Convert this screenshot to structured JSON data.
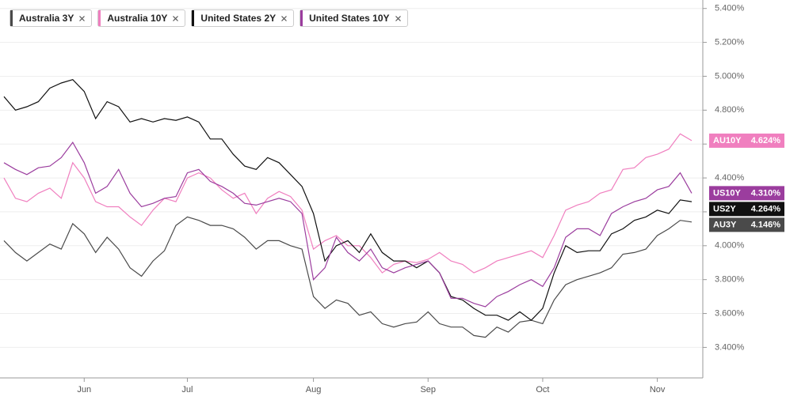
{
  "chart_data": {
    "type": "line",
    "categories": [
      null,
      null,
      null,
      null,
      null,
      null,
      null,
      "Jun",
      null,
      null,
      null,
      null,
      null,
      null,
      null,
      null,
      "Jul",
      null,
      null,
      null,
      null,
      null,
      null,
      null,
      null,
      null,
      null,
      "Aug",
      null,
      null,
      null,
      null,
      null,
      null,
      null,
      null,
      null,
      "Sep",
      null,
      null,
      null,
      null,
      null,
      null,
      null,
      null,
      null,
      "Oct",
      null,
      null,
      null,
      null,
      null,
      null,
      null,
      null,
      null,
      "Nov",
      null,
      null,
      null
    ],
    "series": [
      {
        "name": "Australia 3Y",
        "tag": "AU3Y",
        "last_label": "4.146%",
        "color": "#4a4a4a",
        "values": [
          4.03,
          3.96,
          3.91,
          3.96,
          4.01,
          3.98,
          4.13,
          4.07,
          3.96,
          4.05,
          3.98,
          3.87,
          3.82,
          3.91,
          3.97,
          4.12,
          4.17,
          4.15,
          4.12,
          4.12,
          4.1,
          4.05,
          3.98,
          4.03,
          4.03,
          4.0,
          3.98,
          3.7,
          3.63,
          3.68,
          3.66,
          3.59,
          3.61,
          3.54,
          3.52,
          3.54,
          3.55,
          3.61,
          3.54,
          3.52,
          3.52,
          3.47,
          3.46,
          3.52,
          3.49,
          3.55,
          3.56,
          3.54,
          3.68,
          3.77,
          3.8,
          3.82,
          3.84,
          3.87,
          3.95,
          3.96,
          3.98,
          4.06,
          4.1,
          4.15,
          4.14
        ]
      },
      {
        "name": "Australia 10Y",
        "tag": "AU10Y",
        "last_label": "4.624%",
        "color": "#f07fbf",
        "values": [
          4.4,
          4.28,
          4.26,
          4.31,
          4.34,
          4.28,
          4.49,
          4.4,
          4.26,
          4.23,
          4.23,
          4.17,
          4.12,
          4.21,
          4.28,
          4.26,
          4.4,
          4.43,
          4.4,
          4.33,
          4.28,
          4.31,
          4.19,
          4.28,
          4.32,
          4.29,
          4.21,
          3.98,
          4.03,
          4.06,
          4.0,
          4.0,
          3.93,
          3.84,
          3.89,
          3.91,
          3.9,
          3.92,
          3.96,
          3.91,
          3.89,
          3.84,
          3.87,
          3.91,
          3.93,
          3.95,
          3.97,
          3.93,
          4.06,
          4.21,
          4.24,
          4.26,
          4.31,
          4.33,
          4.45,
          4.46,
          4.52,
          4.54,
          4.57,
          4.66,
          4.62
        ]
      },
      {
        "name": "United States 2Y",
        "tag": "US2Y",
        "last_label": "4.264%",
        "color": "#111111",
        "values": [
          4.88,
          4.8,
          4.82,
          4.85,
          4.93,
          4.96,
          4.98,
          4.91,
          4.75,
          4.85,
          4.82,
          4.73,
          4.75,
          4.73,
          4.75,
          4.74,
          4.76,
          4.73,
          4.63,
          4.63,
          4.54,
          4.47,
          4.45,
          4.52,
          4.49,
          4.42,
          4.35,
          4.19,
          3.91,
          4.0,
          4.03,
          3.96,
          4.07,
          3.96,
          3.91,
          3.91,
          3.87,
          3.91,
          3.84,
          3.7,
          3.68,
          3.63,
          3.59,
          3.59,
          3.56,
          3.61,
          3.56,
          3.63,
          3.84,
          4.0,
          3.96,
          3.97,
          3.97,
          4.07,
          4.1,
          4.15,
          4.17,
          4.21,
          4.19,
          4.27,
          4.26
        ]
      },
      {
        "name": "United States 10Y",
        "tag": "US10Y",
        "last_label": "4.310%",
        "color": "#9b3d9e",
        "values": [
          4.49,
          4.45,
          4.42,
          4.46,
          4.47,
          4.52,
          4.61,
          4.49,
          4.31,
          4.35,
          4.45,
          4.31,
          4.23,
          4.25,
          4.28,
          4.29,
          4.43,
          4.45,
          4.38,
          4.35,
          4.31,
          4.25,
          4.24,
          4.26,
          4.28,
          4.26,
          4.19,
          3.8,
          3.87,
          4.05,
          3.96,
          3.91,
          3.98,
          3.87,
          3.84,
          3.87,
          3.89,
          3.91,
          3.84,
          3.69,
          3.69,
          3.66,
          3.64,
          3.7,
          3.73,
          3.77,
          3.8,
          3.76,
          3.87,
          4.05,
          4.1,
          4.1,
          4.06,
          4.19,
          4.23,
          4.26,
          4.28,
          4.33,
          4.35,
          4.43,
          4.31
        ]
      }
    ],
    "ylim": [
      3.22,
      5.45
    ],
    "yticks": [
      {
        "value": 3.4,
        "label": "3.400%"
      },
      {
        "value": 3.6,
        "label": "3.600%"
      },
      {
        "value": 3.8,
        "label": "3.800%"
      },
      {
        "value": 4.0,
        "label": "4.000%"
      },
      {
        "value": 4.2,
        "label": "4.200%"
      },
      {
        "value": 4.4,
        "label": "4.400%"
      },
      {
        "value": 4.6,
        "label": "4.600%"
      },
      {
        "value": 4.8,
        "label": "4.800%"
      },
      {
        "value": 5.0,
        "label": "5.000%"
      },
      {
        "value": 5.2,
        "label": "5.200%"
      },
      {
        "value": 5.4,
        "label": "5.400%"
      }
    ],
    "grid": true
  }
}
